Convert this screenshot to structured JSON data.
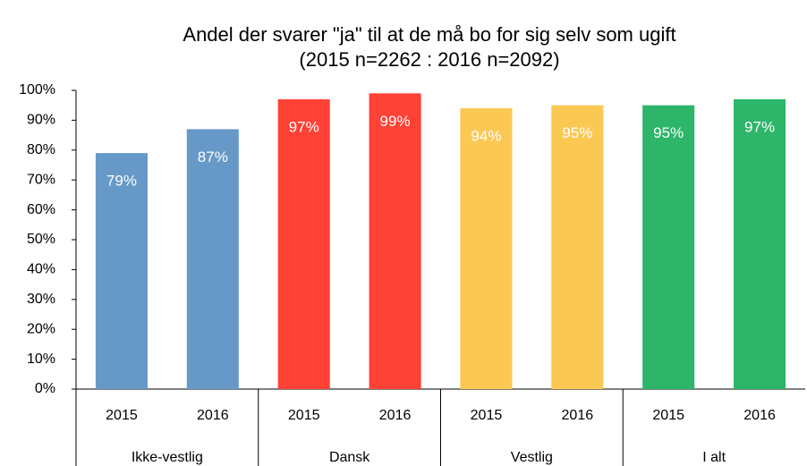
{
  "chart_data": {
    "type": "bar",
    "title": "Andel der svarer \"ja\" til at de må bo for sig selv som ugift",
    "subtitle": "(2015 n=2262 : 2016 n=2092)",
    "groups": [
      {
        "name": "Ikke-vestlig",
        "color": "#6699c8",
        "categories": [
          "2015",
          "2016"
        ],
        "values": [
          79,
          87
        ],
        "value_labels": [
          "79%",
          "87%"
        ]
      },
      {
        "name": "Dansk",
        "color": "#ff4136",
        "categories": [
          "2015",
          "2016"
        ],
        "values": [
          97,
          99
        ],
        "value_labels": [
          "97%",
          "99%"
        ]
      },
      {
        "name": "Vestlig",
        "color": "#fcc854",
        "categories": [
          "2015",
          "2016"
        ],
        "values": [
          94,
          95
        ],
        "value_labels": [
          "94%",
          "95%"
        ]
      },
      {
        "name": "I alt",
        "color": "#2db56a",
        "categories": [
          "2015",
          "2016"
        ],
        "values": [
          95,
          97
        ],
        "value_labels": [
          "95%",
          "97%"
        ]
      }
    ],
    "ylim": [
      0,
      100
    ],
    "yticks": [
      {
        "value": 0,
        "label": "0%"
      },
      {
        "value": 10,
        "label": "10%"
      },
      {
        "value": 20,
        "label": "20%"
      },
      {
        "value": 30,
        "label": "30%"
      },
      {
        "value": 40,
        "label": "40%"
      },
      {
        "value": 50,
        "label": "50%"
      },
      {
        "value": 60,
        "label": "60%"
      },
      {
        "value": 70,
        "label": "70%"
      },
      {
        "value": 80,
        "label": "80%"
      },
      {
        "value": 90,
        "label": "90%"
      },
      {
        "value": 100,
        "label": "100%"
      }
    ],
    "grid": false
  }
}
